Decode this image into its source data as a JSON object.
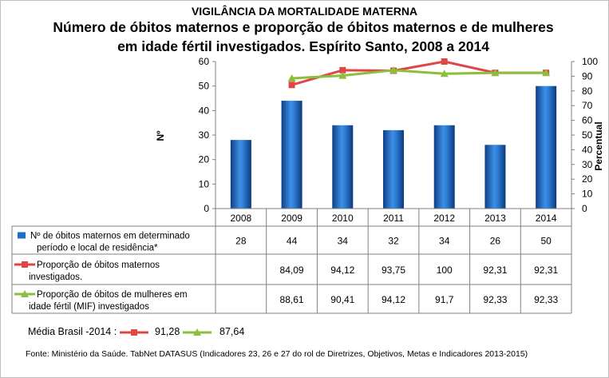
{
  "header": {
    "kicker": "VIGILÂNCIA DA MORTALIDADE MATERNA",
    "title_line1": "Número de óbitos maternos e proporção de óbitos maternos e de mulheres",
    "title_line2": "em idade fértil investigados. Espírito Santo, 2008 a 2014"
  },
  "chart_data": {
    "type": "bar",
    "title": "Número de óbitos maternos e proporção de óbitos maternos e de mulheres em idade fértil investigados. Espírito Santo, 2008 a 2014",
    "categories": [
      "2008",
      "2009",
      "2010",
      "2011",
      "2012",
      "2013",
      "2014"
    ],
    "y_left": {
      "label": "Nº",
      "ylim": [
        0,
        60
      ],
      "ticks": [
        0,
        10,
        20,
        30,
        40,
        50,
        60
      ]
    },
    "y_right": {
      "label": "Percentual",
      "ylim": [
        0,
        100
      ],
      "ticks": [
        0,
        10,
        20,
        30,
        40,
        50,
        60,
        70,
        80,
        90,
        100
      ]
    },
    "series": [
      {
        "name": "Nº  de óbitos maternos em determinado período e local de residência*",
        "legend_lines": [
          "Nº  de óbitos maternos em determinado",
          "período e local de residência*"
        ],
        "type": "bar",
        "axis": "left",
        "color": "#1f6fc5",
        "values": [
          28,
          44,
          34,
          32,
          34,
          26,
          50
        ],
        "labels": [
          "28",
          "44",
          "34",
          "32",
          "34",
          "26",
          "50"
        ]
      },
      {
        "name": "Proporção de óbitos maternos investigados.",
        "legend_lines": [
          "Proporção de óbitos maternos",
          "investigados."
        ],
        "type": "line",
        "axis": "right",
        "color": "#e04646",
        "values": [
          null,
          84.09,
          94.12,
          93.75,
          100,
          92.31,
          92.31
        ],
        "labels": [
          "",
          "84,09",
          "94,12",
          "93,75",
          "100",
          "92,31",
          "92,31"
        ]
      },
      {
        "name": "Proporção de óbitos de mulheres em idade fértil (MIF) investigados",
        "legend_lines": [
          "Proporção de óbitos de mulheres em",
          "idade fértil (MIF) investigados"
        ],
        "type": "line",
        "axis": "right",
        "color": "#8cbf3a",
        "values": [
          null,
          88.61,
          90.41,
          94.12,
          91.7,
          92.33,
          92.33
        ],
        "labels": [
          "",
          "88,61",
          "90,41",
          "94,12",
          "91,7",
          "92,33",
          "92,33"
        ]
      }
    ],
    "grid": false,
    "legend": "data-table"
  },
  "average": {
    "label": "Média Brasil -2014 :",
    "maternal_value": "91,28",
    "mif_value": "87,64"
  },
  "source": "Fonte: Ministério da Saúde. TabNet DATASUS (Indicadores 23, 26 e 27  do rol de Diretrizes, Objetivos, Metas e Indicadores 2013-2015)"
}
